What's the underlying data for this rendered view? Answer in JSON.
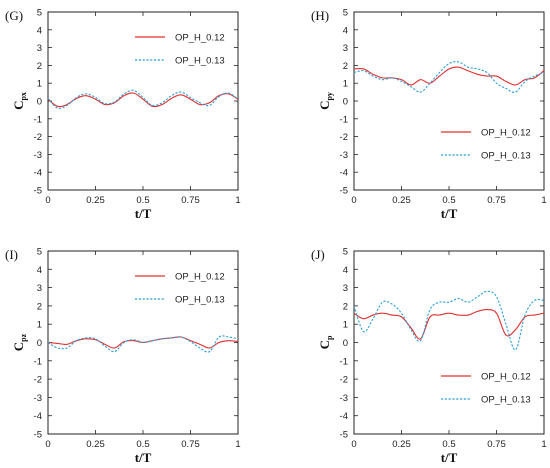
{
  "colors": {
    "series1": "#e03030",
    "series2": "#2a9fd6",
    "axis": "#222222"
  },
  "chart_data": [
    {
      "type": "line",
      "panel": "(G)",
      "ylabel_main": "C",
      "ylabel_sub": "px",
      "xlabel": "t/T",
      "xlim": [
        0,
        1
      ],
      "ylim": [
        -5,
        5
      ],
      "xticks": [
        "0",
        "0.25",
        "0.5",
        "0.75",
        "1"
      ],
      "yticks": [
        "-5",
        "-4",
        "-3",
        "-2",
        "-1",
        "0",
        "1",
        "2",
        "3",
        "4",
        "5"
      ],
      "legend_position": "top-right",
      "x": [
        0,
        0.05,
        0.1,
        0.15,
        0.2,
        0.25,
        0.3,
        0.35,
        0.4,
        0.45,
        0.5,
        0.55,
        0.6,
        0.65,
        0.7,
        0.75,
        0.8,
        0.85,
        0.9,
        0.95,
        1
      ],
      "series": [
        {
          "name": "OP_H_0.12",
          "style": "solid",
          "values": [
            0.1,
            -0.3,
            -0.2,
            0.15,
            0.3,
            0.1,
            -0.2,
            -0.1,
            0.3,
            0.45,
            0.1,
            -0.3,
            -0.2,
            0.15,
            0.35,
            0.1,
            -0.2,
            -0.1,
            0.3,
            0.4,
            0.1
          ]
        },
        {
          "name": "OP_H_0.13",
          "style": "dashed",
          "values": [
            0.15,
            -0.4,
            -0.25,
            0.2,
            0.4,
            0.2,
            -0.15,
            -0.05,
            0.4,
            0.6,
            0.2,
            -0.25,
            -0.1,
            0.3,
            0.5,
            0.2,
            -0.1,
            -0.25,
            0.25,
            0.45,
            0.1
          ]
        }
      ]
    },
    {
      "type": "line",
      "panel": "(H)",
      "ylabel_main": "C",
      "ylabel_sub": "py",
      "xlabel": "t/T",
      "xlim": [
        0,
        1
      ],
      "ylim": [
        -5,
        5
      ],
      "xticks": [
        "0",
        "0.25",
        "0.5",
        "0.75",
        "1"
      ],
      "yticks": [
        "-5",
        "-4",
        "-3",
        "-2",
        "-1",
        "0",
        "1",
        "2",
        "3",
        "4",
        "5"
      ],
      "legend_position": "bottom-right",
      "x": [
        0,
        0.05,
        0.1,
        0.15,
        0.2,
        0.25,
        0.3,
        0.35,
        0.4,
        0.45,
        0.5,
        0.55,
        0.6,
        0.65,
        0.7,
        0.75,
        0.8,
        0.85,
        0.9,
        0.95,
        1
      ],
      "series": [
        {
          "name": "OP_H_0.12",
          "style": "solid",
          "values": [
            1.8,
            1.8,
            1.5,
            1.3,
            1.3,
            1.2,
            0.9,
            1.2,
            1.0,
            1.4,
            1.8,
            1.9,
            1.7,
            1.5,
            1.4,
            1.4,
            1.1,
            0.9,
            1.2,
            1.3,
            1.7
          ]
        },
        {
          "name": "OP_H_0.13",
          "style": "dashed",
          "values": [
            1.6,
            1.7,
            1.4,
            1.2,
            1.3,
            1.1,
            0.8,
            0.5,
            1.0,
            1.6,
            2.1,
            2.2,
            1.9,
            1.8,
            1.6,
            1.0,
            0.7,
            0.5,
            1.1,
            1.4,
            1.6
          ]
        }
      ]
    },
    {
      "type": "line",
      "panel": "(I)",
      "ylabel_main": "C",
      "ylabel_sub": "pz",
      "xlabel": "t/T",
      "xlim": [
        0,
        1
      ],
      "ylim": [
        -5,
        5
      ],
      "xticks": [
        "0",
        "0.25",
        "0.5",
        "0.75",
        "1"
      ],
      "yticks": [
        "-5",
        "-4",
        "-3",
        "-2",
        "-1",
        "0",
        "1",
        "2",
        "3",
        "4",
        "5"
      ],
      "legend_position": "top-right",
      "x": [
        0,
        0.05,
        0.1,
        0.15,
        0.2,
        0.25,
        0.3,
        0.35,
        0.4,
        0.45,
        0.5,
        0.55,
        0.6,
        0.65,
        0.7,
        0.75,
        0.8,
        0.85,
        0.9,
        0.95,
        1
      ],
      "series": [
        {
          "name": "OP_H_0.12",
          "style": "solid",
          "values": [
            0,
            -0.05,
            -0.1,
            0.1,
            0.2,
            0.15,
            -0.1,
            -0.3,
            0.05,
            0.1,
            0.0,
            0.1,
            0.2,
            0.25,
            0.3,
            0.1,
            -0.1,
            -0.3,
            0.0,
            0.1,
            0.05
          ]
        },
        {
          "name": "OP_H_0.13",
          "style": "dashed",
          "values": [
            0,
            -0.3,
            -0.3,
            0.1,
            0.25,
            0.2,
            -0.2,
            -0.5,
            0.0,
            0.15,
            0.0,
            0.1,
            0.2,
            0.25,
            0.3,
            0.05,
            -0.3,
            -0.5,
            0.3,
            0.3,
            0.2
          ]
        }
      ]
    },
    {
      "type": "line",
      "panel": "(J)",
      "ylabel_main": "C",
      "ylabel_sub": "p",
      "xlabel": "t/T",
      "xlim": [
        0,
        1
      ],
      "ylim": [
        -5,
        5
      ],
      "xticks": [
        "0",
        "0.25",
        "0.5",
        "0.75",
        "1"
      ],
      "yticks": [
        "-5",
        "-4",
        "-3",
        "-2",
        "-1",
        "0",
        "1",
        "2",
        "3",
        "4",
        "5"
      ],
      "legend_position": "bottom-right",
      "x": [
        0,
        0.05,
        0.1,
        0.15,
        0.2,
        0.25,
        0.3,
        0.35,
        0.4,
        0.45,
        0.5,
        0.55,
        0.6,
        0.65,
        0.7,
        0.75,
        0.8,
        0.85,
        0.9,
        0.95,
        1
      ],
      "series": [
        {
          "name": "OP_H_0.12",
          "style": "solid",
          "values": [
            1.6,
            1.3,
            1.5,
            1.6,
            1.5,
            1.4,
            0.8,
            0.2,
            1.4,
            1.5,
            1.6,
            1.5,
            1.5,
            1.7,
            1.8,
            1.6,
            0.4,
            0.7,
            1.4,
            1.5,
            1.6
          ]
        },
        {
          "name": "OP_H_0.13",
          "style": "dashed",
          "values": [
            2.0,
            0.6,
            1.3,
            2.2,
            2.1,
            1.6,
            0.7,
            0.1,
            1.8,
            2.2,
            2.2,
            2.4,
            2.2,
            2.5,
            2.8,
            2.5,
            1.0,
            -0.4,
            1.5,
            2.3,
            2.3
          ]
        }
      ]
    }
  ]
}
